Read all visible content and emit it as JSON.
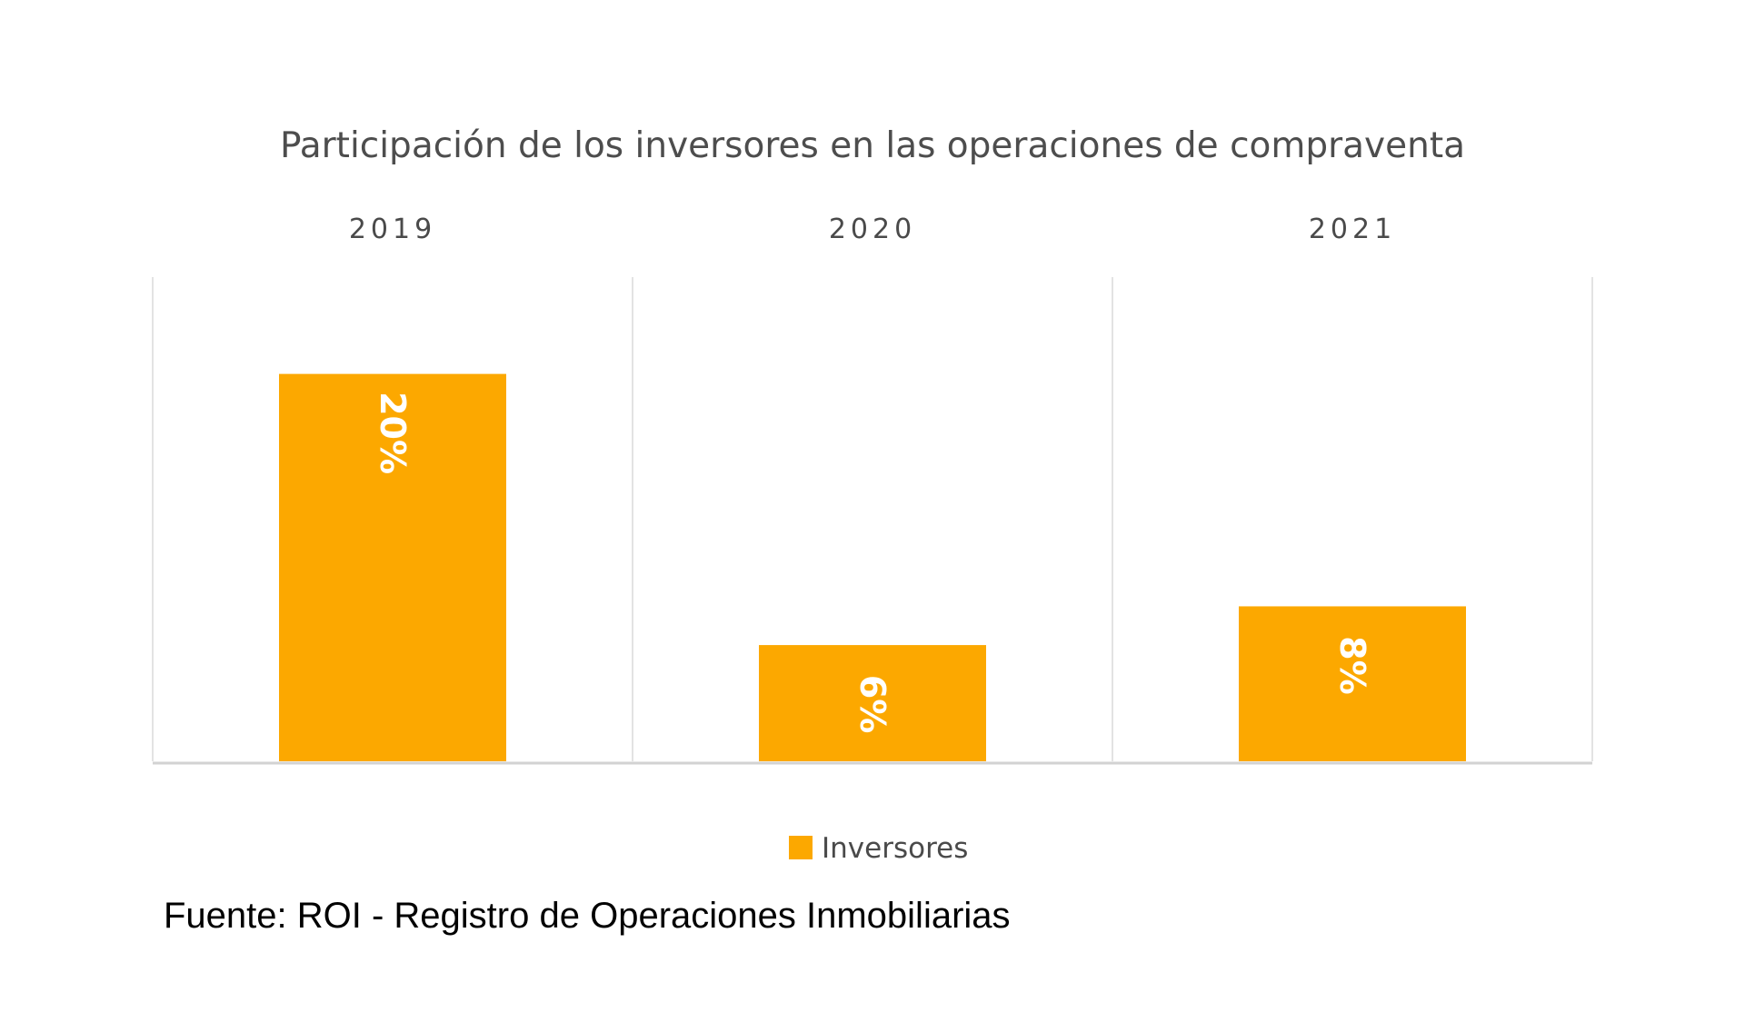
{
  "chart_data": {
    "type": "bar",
    "title": "Participación de los inversores en las operaciones de compraventa",
    "categories": [
      "2019",
      "2020",
      "2021"
    ],
    "series": [
      {
        "name": "Inversores",
        "values": [
          20,
          6,
          8
        ],
        "labels": [
          "20%",
          "6%",
          "8%"
        ],
        "color": "#FCA800"
      }
    ],
    "xlabel": "",
    "ylabel": "",
    "ylim": [
      0,
      25
    ],
    "grid": false,
    "legend_position": "bottom"
  },
  "source": "Fuente: ROI - Registro de Operaciones Inmobiliarias"
}
